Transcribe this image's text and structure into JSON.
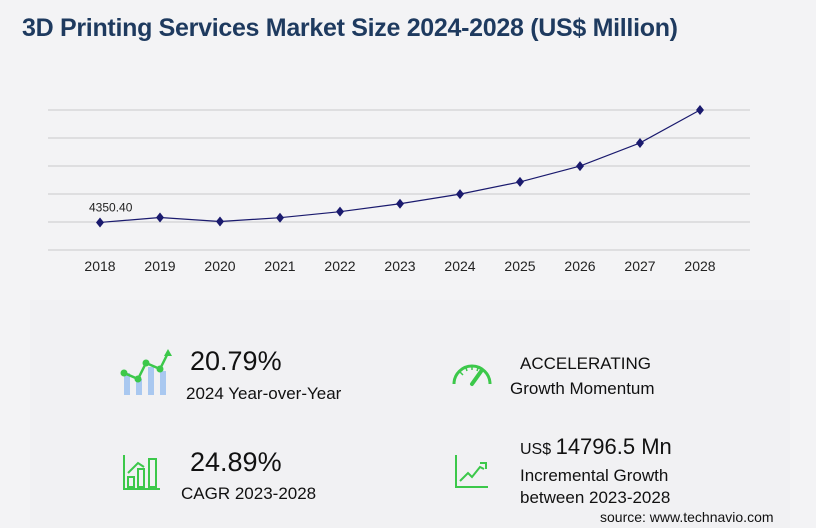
{
  "title": "3D Printing Services Market Size 2024-2028 (US$ Million)",
  "chart_data": {
    "type": "line",
    "title": "3D Printing Services Market Size 2024-2028 (US$ Million)",
    "categories": [
      "2018",
      "2019",
      "2020",
      "2021",
      "2022",
      "2023",
      "2024",
      "2025",
      "2026",
      "2027",
      "2028"
    ],
    "values": [
      4350.4,
      5130,
      4500,
      5100,
      6050,
      7300,
      8820,
      10750,
      13250,
      16900,
      22100
    ],
    "data_labels": [
      {
        "index": 0,
        "text": "4350.40"
      }
    ],
    "ylim": [
      0,
      22100
    ],
    "grid": true,
    "line_color": "#1a1a6e",
    "marker": "diamond"
  },
  "stats": {
    "yoy_value": "20.79%",
    "yoy_label": "2024 Year-over-Year",
    "momentum_value": "ACCELERATING",
    "momentum_label": "Growth Momentum",
    "cagr_value": "24.89%",
    "cagr_label": "CAGR 2023-2028",
    "incr_prefix": "US$",
    "incr_value": "14796.5 Mn",
    "incr_label_1": "Incremental Growth",
    "incr_label_2": "between 2023-2028"
  },
  "source": "source: www.technavio.com",
  "colors": {
    "accent_green": "#3cc84a",
    "bar_blue": "#a9c8f0",
    "title": "#1e3a5f"
  }
}
